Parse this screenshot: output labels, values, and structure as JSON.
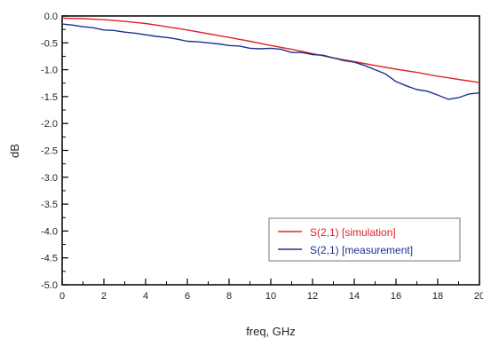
{
  "chart_data": {
    "type": "line",
    "xlabel": "freq, GHz",
    "ylabel": "dB",
    "xlim": [
      0,
      20
    ],
    "ylim": [
      -5.0,
      0.0
    ],
    "x_ticks": [
      0,
      2,
      4,
      6,
      8,
      10,
      12,
      14,
      16,
      18,
      20
    ],
    "x_tick_labels": [
      "0",
      "2",
      "4",
      "6",
      "8",
      "10",
      "12",
      "14",
      "16",
      "18",
      "20"
    ],
    "y_ticks": [
      0.0,
      -0.5,
      -1.0,
      -1.5,
      -2.0,
      -2.5,
      -3.0,
      -3.5,
      -4.0,
      -4.5,
      -5.0
    ],
    "y_tick_labels": [
      "0.0",
      "-0.5",
      "-1.0",
      "-1.5",
      "-2.0",
      "-2.5",
      "-3.0",
      "-3.5",
      "-4.0",
      "-4.5",
      "-5.0"
    ],
    "grid": false,
    "legend_position": "bottom-right",
    "series": [
      {
        "name": "S(2,1) [simulation]",
        "color": "#e0232a",
        "x": [
          0,
          1,
          2,
          3,
          4,
          5,
          6,
          7,
          8,
          9,
          10,
          11,
          12,
          13,
          14,
          15,
          16,
          17,
          18,
          19,
          20
        ],
        "y": [
          -0.04,
          -0.05,
          -0.07,
          -0.1,
          -0.14,
          -0.2,
          -0.26,
          -0.33,
          -0.4,
          -0.47,
          -0.55,
          -0.62,
          -0.7,
          -0.78,
          -0.85,
          -0.92,
          -0.99,
          -1.05,
          -1.12,
          -1.18,
          -1.24
        ]
      },
      {
        "name": "S(2,1) [measurement]",
        "color": "#1b2f8f",
        "x": [
          0,
          0.5,
          1,
          1.5,
          2,
          2.5,
          3,
          3.5,
          4,
          4.5,
          5,
          5.5,
          6,
          6.5,
          7,
          7.5,
          8,
          8.5,
          9,
          9.5,
          10,
          10.5,
          11,
          11.5,
          12,
          12.5,
          13,
          13.5,
          14,
          14.5,
          15,
          15.5,
          16,
          16.5,
          17,
          17.5,
          18,
          18.5,
          19,
          19.5,
          20
        ],
        "y": [
          -0.15,
          -0.17,
          -0.2,
          -0.22,
          -0.26,
          -0.27,
          -0.3,
          -0.32,
          -0.35,
          -0.38,
          -0.4,
          -0.43,
          -0.47,
          -0.48,
          -0.5,
          -0.52,
          -0.55,
          -0.56,
          -0.6,
          -0.61,
          -0.6,
          -0.62,
          -0.68,
          -0.68,
          -0.72,
          -0.73,
          -0.78,
          -0.83,
          -0.86,
          -0.92,
          -1.0,
          -1.08,
          -1.22,
          -1.3,
          -1.37,
          -1.4,
          -1.47,
          -1.55,
          -1.52,
          -1.45,
          -1.43
        ]
      }
    ]
  }
}
